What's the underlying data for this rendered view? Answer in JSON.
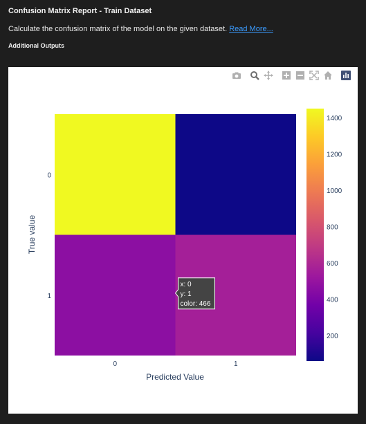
{
  "header": {
    "title": "Confusion Matrix Report - Train Dataset",
    "description": "Calculate the confusion matrix of the model on the given dataset.",
    "read_more": "Read More...",
    "additional_outputs": "Additional Outputs"
  },
  "modebar": {
    "icons": [
      "camera-icon",
      "zoom-icon",
      "pan-icon",
      "zoom-in-icon",
      "zoom-out-icon",
      "autoscale-icon",
      "reset-axes-icon",
      "plotly-logo-icon"
    ]
  },
  "chart_data": {
    "type": "heatmap",
    "x_categories": [
      "0",
      "1"
    ],
    "y_categories": [
      "0",
      "1"
    ],
    "z": [
      [
        1450,
        60
      ],
      [
        466,
        560
      ]
    ],
    "xlabel": "Predicted Value",
    "ylabel": "True value",
    "colorscale": "plasma",
    "zmin": 60,
    "zmax": 1450,
    "colorbar_ticks": [
      200,
      400,
      600,
      800,
      1000,
      1200,
      1400
    ],
    "hover": {
      "x": "0",
      "y": "1",
      "value": "466",
      "lines": [
        "x: 0",
        "y: 1",
        "color: 466"
      ]
    }
  }
}
